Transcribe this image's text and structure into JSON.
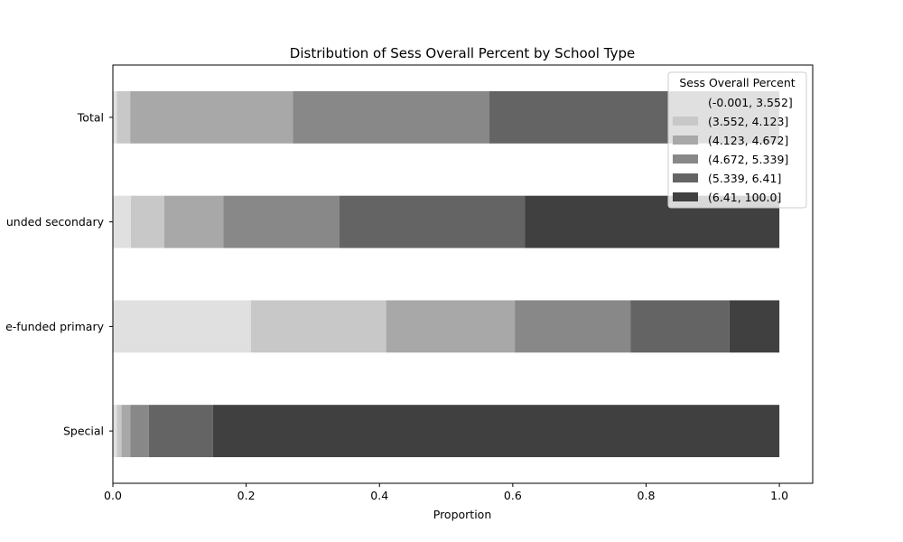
{
  "chart_data": {
    "type": "bar",
    "orientation": "horizontal",
    "stacked": true,
    "title": "Distribution of Sess Overall Percent by School Type",
    "xlabel": "Proportion",
    "ylabel": "",
    "xlim": [
      0,
      1.05
    ],
    "xticks": [
      "0.0",
      "0.2",
      "0.4",
      "0.6",
      "0.8",
      "1.0"
    ],
    "tick_values": [
      0,
      0.2,
      0.4,
      0.6,
      0.8,
      1.0
    ],
    "categories": [
      "Total",
      "unded secondary",
      "e-funded primary",
      "Special"
    ],
    "legend": {
      "title": "Sess Overall Percent",
      "position": "top-right"
    },
    "grid": false,
    "series": [
      {
        "name": "(-0.001, 3.552]",
        "color": "#e0e0e0",
        "values": [
          0.006,
          0.027,
          0.207,
          0.006
        ]
      },
      {
        "name": "(3.552, 4.123]",
        "color": "#c8c8c8",
        "values": [
          0.02,
          0.05,
          0.203,
          0.007
        ]
      },
      {
        "name": "(4.123, 4.672]",
        "color": "#a8a8a8",
        "values": [
          0.244,
          0.089,
          0.193,
          0.013
        ]
      },
      {
        "name": "(4.672, 5.339]",
        "color": "#888888",
        "values": [
          0.295,
          0.174,
          0.174,
          0.028
        ]
      },
      {
        "name": "(5.339, 6.41]",
        "color": "#646464",
        "values": [
          0.435,
          0.278,
          0.148,
          0.096
        ]
      },
      {
        "name": "(6.41, 100.0]",
        "color": "#404040",
        "values": [
          0.0,
          0.382,
          0.075,
          0.85
        ]
      }
    ]
  }
}
